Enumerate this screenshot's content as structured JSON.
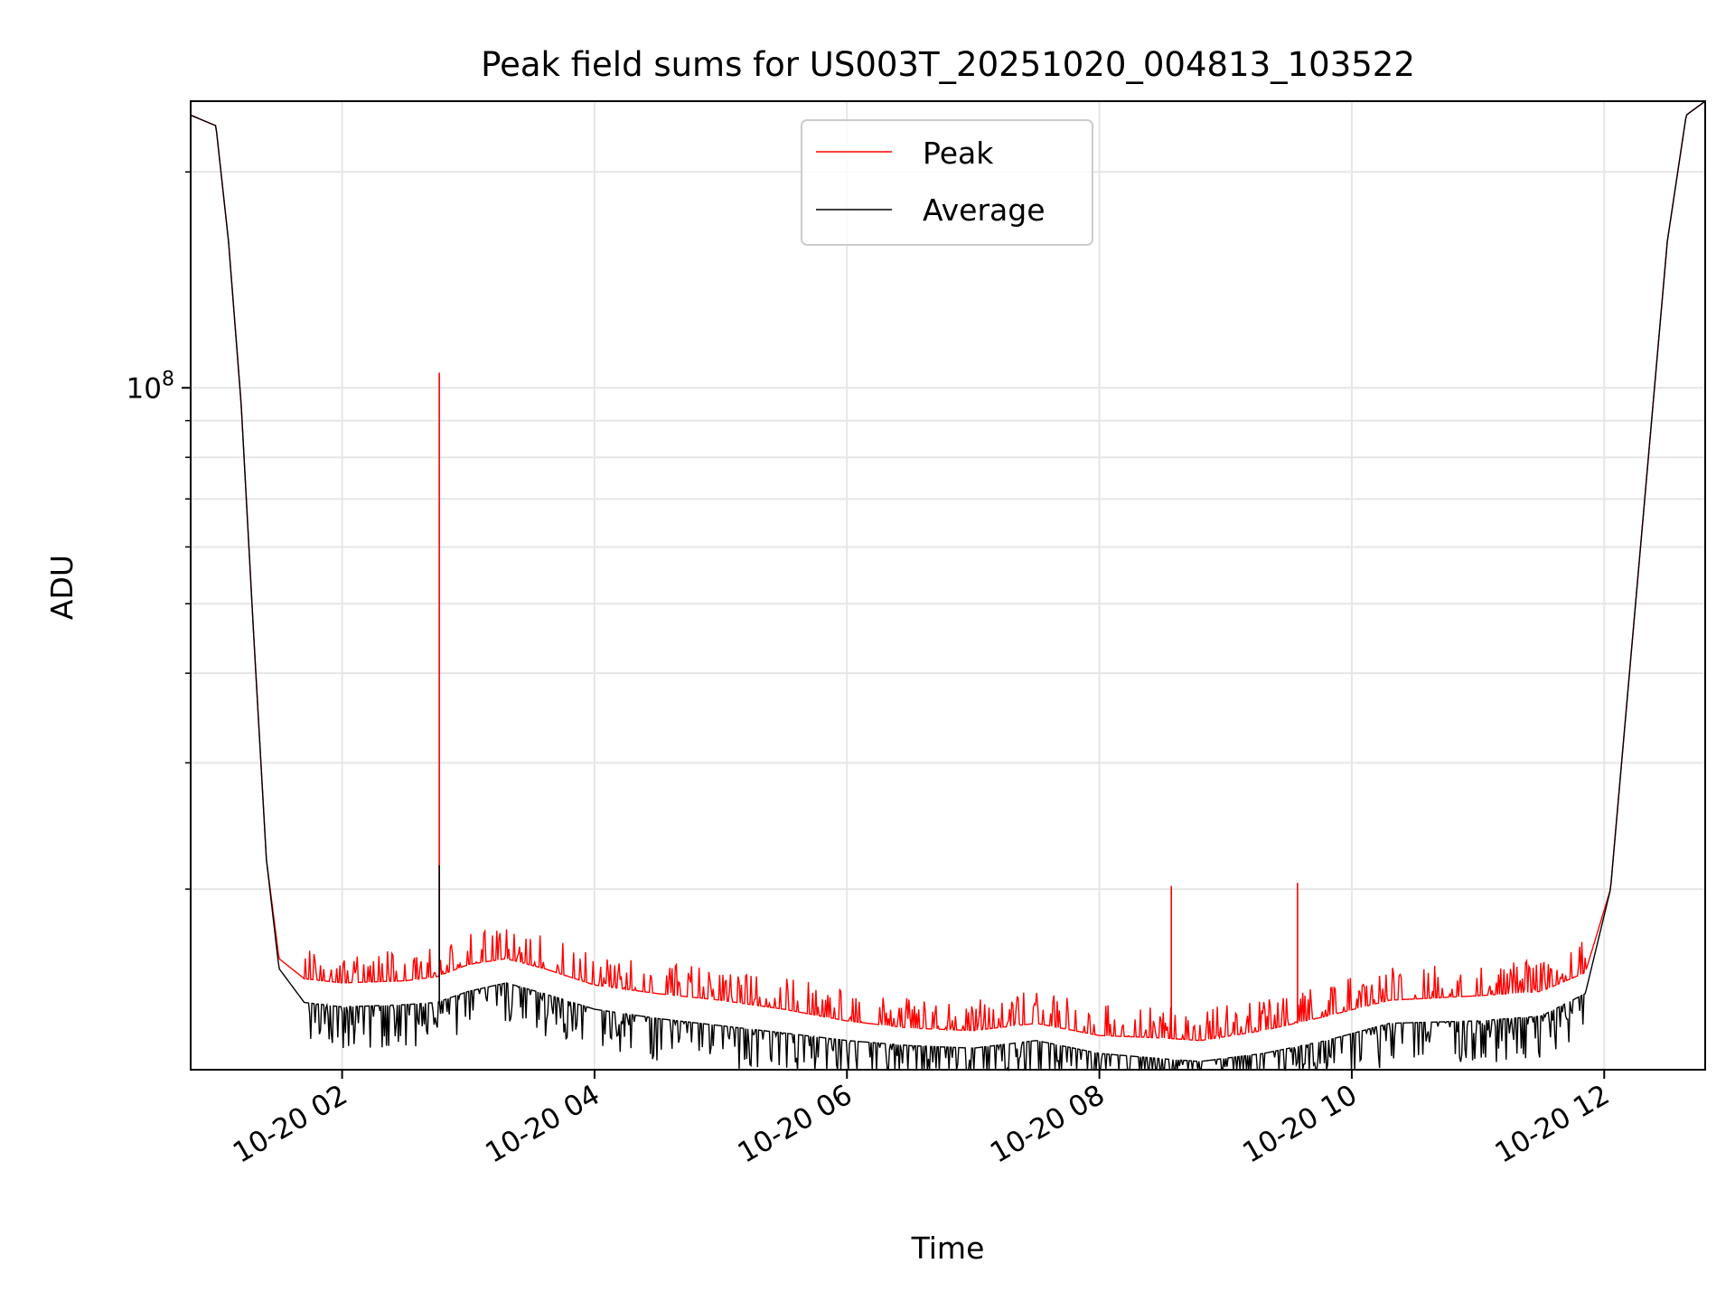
{
  "chart_data": {
    "type": "line",
    "title": "Peak field sums for US003T_20251020_004813_103522",
    "xlabel": "Time",
    "ylabel": "ADU",
    "yscale": "log",
    "xlim_hours": [
      0.8,
      12.8
    ],
    "ylim": [
      11200000,
      251000000
    ],
    "x_tick_labels": [
      "10-20 02",
      "10-20 04",
      "10-20 06",
      "10-20 08",
      "10-20 10",
      "10-20 12"
    ],
    "x_tick_hours": [
      2,
      4,
      6,
      8,
      10,
      12
    ],
    "y_major_ticks": [
      {
        "value": 100000000,
        "base": "10",
        "exp": "8"
      }
    ],
    "y_minor_ticks": [
      20000000,
      30000000,
      40000000,
      50000000,
      60000000,
      70000000,
      80000000,
      90000000,
      200000000
    ],
    "grid": true,
    "legend_location": "upper center",
    "series": [
      {
        "name": "Peak",
        "color": "#ff0000",
        "hours": [
          0.8,
          1.0,
          1.1,
          1.2,
          1.3,
          1.4,
          1.5,
          1.7,
          2.0,
          2.5,
          2.75,
          3.0,
          3.3,
          3.6,
          4.0,
          4.5,
          5.0,
          5.5,
          6.0,
          6.5,
          7.0,
          7.5,
          8.0,
          8.5,
          8.8,
          9.3,
          9.8,
          10.3,
          11.0,
          11.5,
          11.85,
          12.05,
          12.2,
          12.35,
          12.5,
          12.65,
          12.8
        ],
        "values": [
          240000000,
          232000000,
          160000000,
          95000000,
          45000000,
          22000000,
          16000000,
          15000000,
          14800000,
          14900000,
          15100000,
          15700000,
          16000000,
          15500000,
          14700000,
          14300000,
          14000000,
          13600000,
          13100000,
          12800000,
          12700000,
          13000000,
          12500000,
          12400000,
          12300000,
          12700000,
          13300000,
          14000000,
          14200000,
          14400000,
          15300000,
          20000000,
          40000000,
          80000000,
          160000000,
          240000000,
          251000000
        ],
        "spikes": [
          {
            "hour": 2.77,
            "value": 105000000
          },
          {
            "hour": 8.57,
            "value": 20200000
          },
          {
            "hour": 9.57,
            "value": 20400000
          }
        ]
      },
      {
        "name": "Average",
        "color": "#000000",
        "hours": [
          0.8,
          1.0,
          1.1,
          1.2,
          1.3,
          1.4,
          1.5,
          1.7,
          2.0,
          2.5,
          2.75,
          3.0,
          3.3,
          3.6,
          4.0,
          4.5,
          5.0,
          5.5,
          6.0,
          6.5,
          7.0,
          7.5,
          8.0,
          8.5,
          8.8,
          9.3,
          9.8,
          10.3,
          11.0,
          11.5,
          11.85,
          12.05,
          12.2,
          12.35,
          12.5,
          12.65,
          12.8
        ],
        "values": [
          240000000,
          232000000,
          160000000,
          95000000,
          45000000,
          22000000,
          15500000,
          13900000,
          13700000,
          13800000,
          13900000,
          14400000,
          14800000,
          14300000,
          13600000,
          13200000,
          12900000,
          12600000,
          12300000,
          12100000,
          12000000,
          12300000,
          11800000,
          11600000,
          11500000,
          11800000,
          12300000,
          13000000,
          13100000,
          13300000,
          14300000,
          20000000,
          40000000,
          80000000,
          160000000,
          240000000,
          251000000
        ],
        "spikes": [
          {
            "hour": 2.77,
            "value": 21600000
          }
        ]
      }
    ]
  }
}
